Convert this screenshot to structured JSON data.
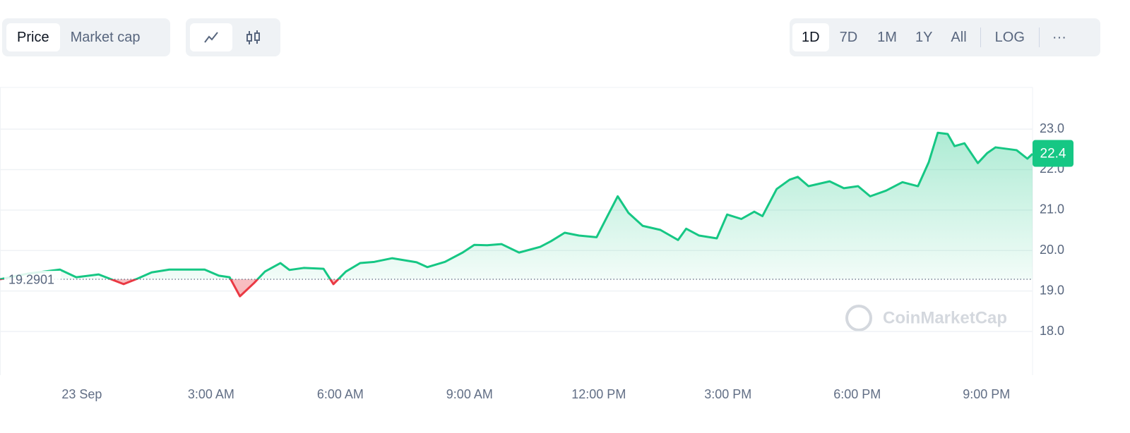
{
  "toolbar": {
    "tabs": [
      "Price",
      "Market cap"
    ],
    "ranges": [
      "1D",
      "7D",
      "1M",
      "1Y",
      "All"
    ],
    "log": "LOG",
    "more": "···"
  },
  "chart_data": {
    "type": "line",
    "watermark": "CoinMarketCap",
    "x": [
      -1.9,
      -1.25,
      -0.51,
      -0.13,
      0.39,
      0.97,
      1.3,
      1.62,
      2.03,
      2.85,
      3.18,
      3.43,
      3.67,
      4.0,
      4.25,
      4.61,
      4.82,
      5.15,
      5.61,
      5.84,
      6.13,
      6.46,
      6.79,
      7.2,
      7.77,
      8.02,
      8.43,
      8.84,
      9.11,
      9.41,
      9.74,
      10.15,
      10.64,
      10.89,
      11.21,
      11.54,
      11.95,
      12.23,
      12.44,
      12.69,
      13.02,
      13.43,
      13.84,
      14.03,
      14.33,
      14.74,
      14.98,
      15.31,
      15.61,
      15.8,
      16.13,
      16.43,
      16.62,
      16.87,
      17.36,
      17.69,
      18.02,
      18.3,
      18.67,
      19.05,
      19.41,
      19.66,
      19.87,
      20.1,
      20.26,
      20.49,
      20.8,
      21.02,
      21.21,
      21.7,
      21.95,
      22.07
    ],
    "series": [
      {
        "name": "Price",
        "color": "#16c784",
        "down_color": "#ea3943",
        "values": [
          19.29,
          19.43,
          19.53,
          19.34,
          19.41,
          19.17,
          19.31,
          19.46,
          19.53,
          19.53,
          19.38,
          19.34,
          18.87,
          19.2,
          19.48,
          19.69,
          19.52,
          19.57,
          19.55,
          19.17,
          19.48,
          19.69,
          19.72,
          19.81,
          19.71,
          19.59,
          19.72,
          19.95,
          20.14,
          20.13,
          20.16,
          19.95,
          20.09,
          20.23,
          20.44,
          20.37,
          20.33,
          20.91,
          21.34,
          20.93,
          20.61,
          20.51,
          20.26,
          20.54,
          20.37,
          20.3,
          20.89,
          20.78,
          20.96,
          20.85,
          21.52,
          21.75,
          21.82,
          21.59,
          21.71,
          21.54,
          21.59,
          21.34,
          21.48,
          21.69,
          21.59,
          22.18,
          22.91,
          22.88,
          22.58,
          22.65,
          22.16,
          22.41,
          22.55,
          22.48,
          22.27,
          22.39
        ]
      }
    ],
    "reference": 19.2901,
    "price_tag": 22.4,
    "xlim": [
      -1.9,
      22.07
    ],
    "xticks": [
      {
        "value": 0,
        "label": "23 Sep"
      },
      {
        "value": 3,
        "label": "3:00 AM"
      },
      {
        "value": 6,
        "label": "6:00 AM"
      },
      {
        "value": 9,
        "label": "9:00 AM"
      },
      {
        "value": 12,
        "label": "12:00 PM"
      },
      {
        "value": 15,
        "label": "3:00 PM"
      },
      {
        "value": 18,
        "label": "6:00 PM"
      },
      {
        "value": 21,
        "label": "9:00 PM"
      }
    ],
    "ylim": [
      16.92,
      24.03
    ],
    "yticks": [
      {
        "value": 18,
        "label": "18.0"
      },
      {
        "value": 19,
        "label": "19.0"
      },
      {
        "value": 20,
        "label": "20.0"
      },
      {
        "value": 21,
        "label": "21.0"
      },
      {
        "value": 22,
        "label": "22.0"
      },
      {
        "value": 23,
        "label": "23.0"
      }
    ],
    "grid": true
  }
}
